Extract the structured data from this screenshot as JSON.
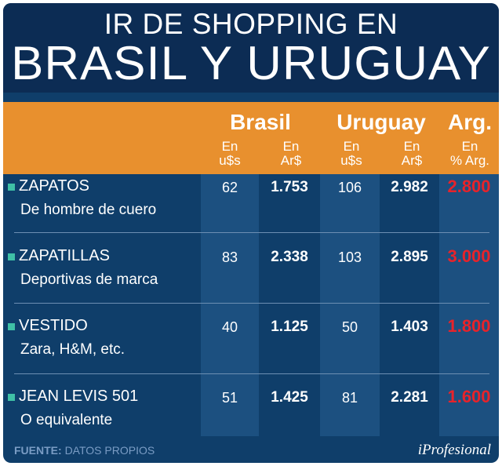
{
  "title": {
    "line1": "IR DE SHOPPING EN",
    "line2": "BRASIL Y URUGUAY"
  },
  "header": {
    "brasil": "Brasil",
    "uruguay": "Uruguay",
    "arg": "Arg.",
    "en": "En",
    "usd": "u$s",
    "ars": "Ar$",
    "pct_arg": "% Arg."
  },
  "footer": {
    "source_label": "FUENTE:",
    "source_value": "DATOS PROPIOS",
    "brand": "iProfesional"
  },
  "colors": {
    "panel": "#0f3e6a",
    "titlebar": "#0c2c54",
    "header_band": "#e8902e",
    "stripe": "#1c5080",
    "bullet": "#3fc0a6",
    "percent": "#e8232a"
  },
  "chart_data": {
    "type": "table",
    "title": "IR DE SHOPPING EN BRASIL Y URUGUAY",
    "columns": [
      "Brasil En u$s",
      "Brasil En Ar$",
      "Uruguay En u$s",
      "Uruguay En Ar$",
      "Arg. En % Arg."
    ],
    "rows": [
      {
        "product": "ZAPATOS",
        "detail": "De hombre de cuero",
        "brasil_usd": "62",
        "brasil_ars": "1.753",
        "uruguay_usd": "106",
        "uruguay_ars": "2.982",
        "arg_pct": "2.800"
      },
      {
        "product": "ZAPATILLAS",
        "detail": "Deportivas de marca",
        "brasil_usd": "83",
        "brasil_ars": "2.338",
        "uruguay_usd": "103",
        "uruguay_ars": "2.895",
        "arg_pct": "3.000"
      },
      {
        "product": "VESTIDO",
        "detail": "Zara, H&M, etc.",
        "brasil_usd": "40",
        "brasil_ars": "1.125",
        "uruguay_usd": "50",
        "uruguay_ars": "1.403",
        "arg_pct": "1.800"
      },
      {
        "product": "JEAN LEVIS 501",
        "detail": "O equivalente",
        "brasil_usd": "51",
        "brasil_ars": "1.425",
        "uruguay_usd": "81",
        "uruguay_ars": "2.281",
        "arg_pct": "1.600"
      }
    ],
    "source": "FUENTE: DATOS PROPIOS"
  }
}
